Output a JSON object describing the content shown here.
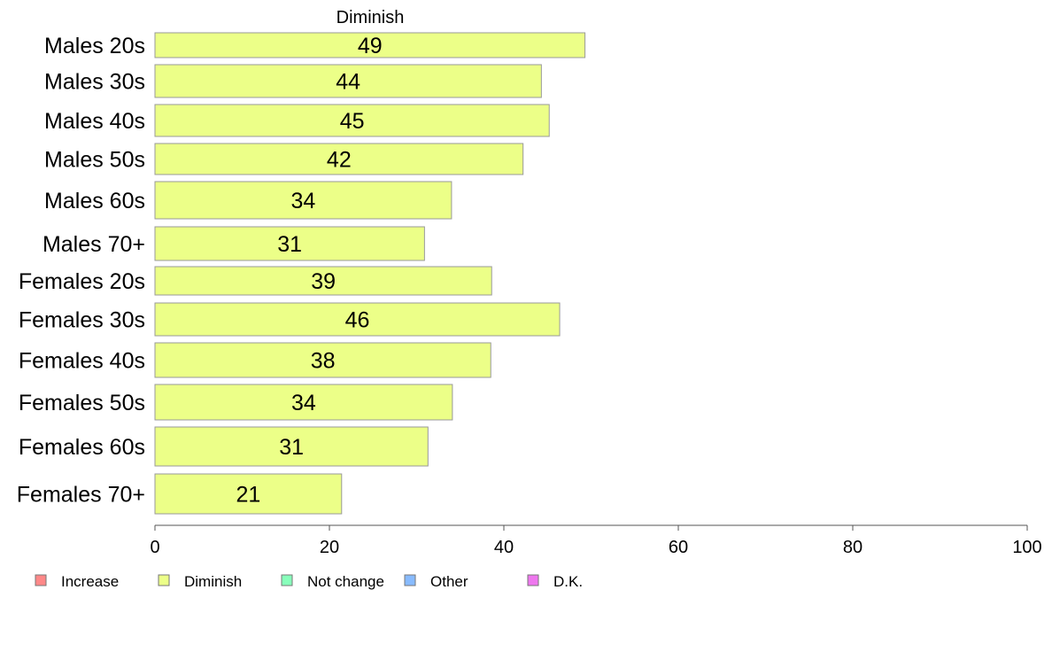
{
  "chart_data": {
    "type": "bar",
    "orientation": "horizontal",
    "title": "Diminish",
    "xlabel": "",
    "ylabel": "",
    "categories": [
      "Males 20s",
      "Males 30s",
      "Males 40s",
      "Males 50s",
      "Males 60s",
      "Males 70+",
      "Females 20s",
      "Females 30s",
      "Females 40s",
      "Females 50s",
      "Females 60s",
      "Females 70+"
    ],
    "series": [
      {
        "name": "Diminish",
        "color": "#ecff88",
        "values": [
          49.3,
          44.3,
          45.2,
          42.2,
          34.0,
          30.9,
          38.6,
          46.4,
          38.5,
          34.1,
          31.3,
          21.4
        ],
        "labels": [
          "49",
          "44",
          "45",
          "42",
          "34",
          "31",
          "39",
          "46",
          "38",
          "34",
          "31",
          "21"
        ]
      }
    ],
    "xlim": [
      0,
      100
    ],
    "xticks": [
      "0",
      "20",
      "40",
      "60",
      "80",
      "100"
    ],
    "grid": false,
    "legend": {
      "position": "bottom",
      "entries": [
        {
          "label": "Increase",
          "color": "#ff8888"
        },
        {
          "label": "Diminish",
          "color": "#ecff88"
        },
        {
          "label": "Not change",
          "color": "#88ffbb"
        },
        {
          "label": "Other",
          "color": "#88bbff"
        },
        {
          "label": "D.K.",
          "color": "#ee77ee"
        }
      ]
    }
  }
}
